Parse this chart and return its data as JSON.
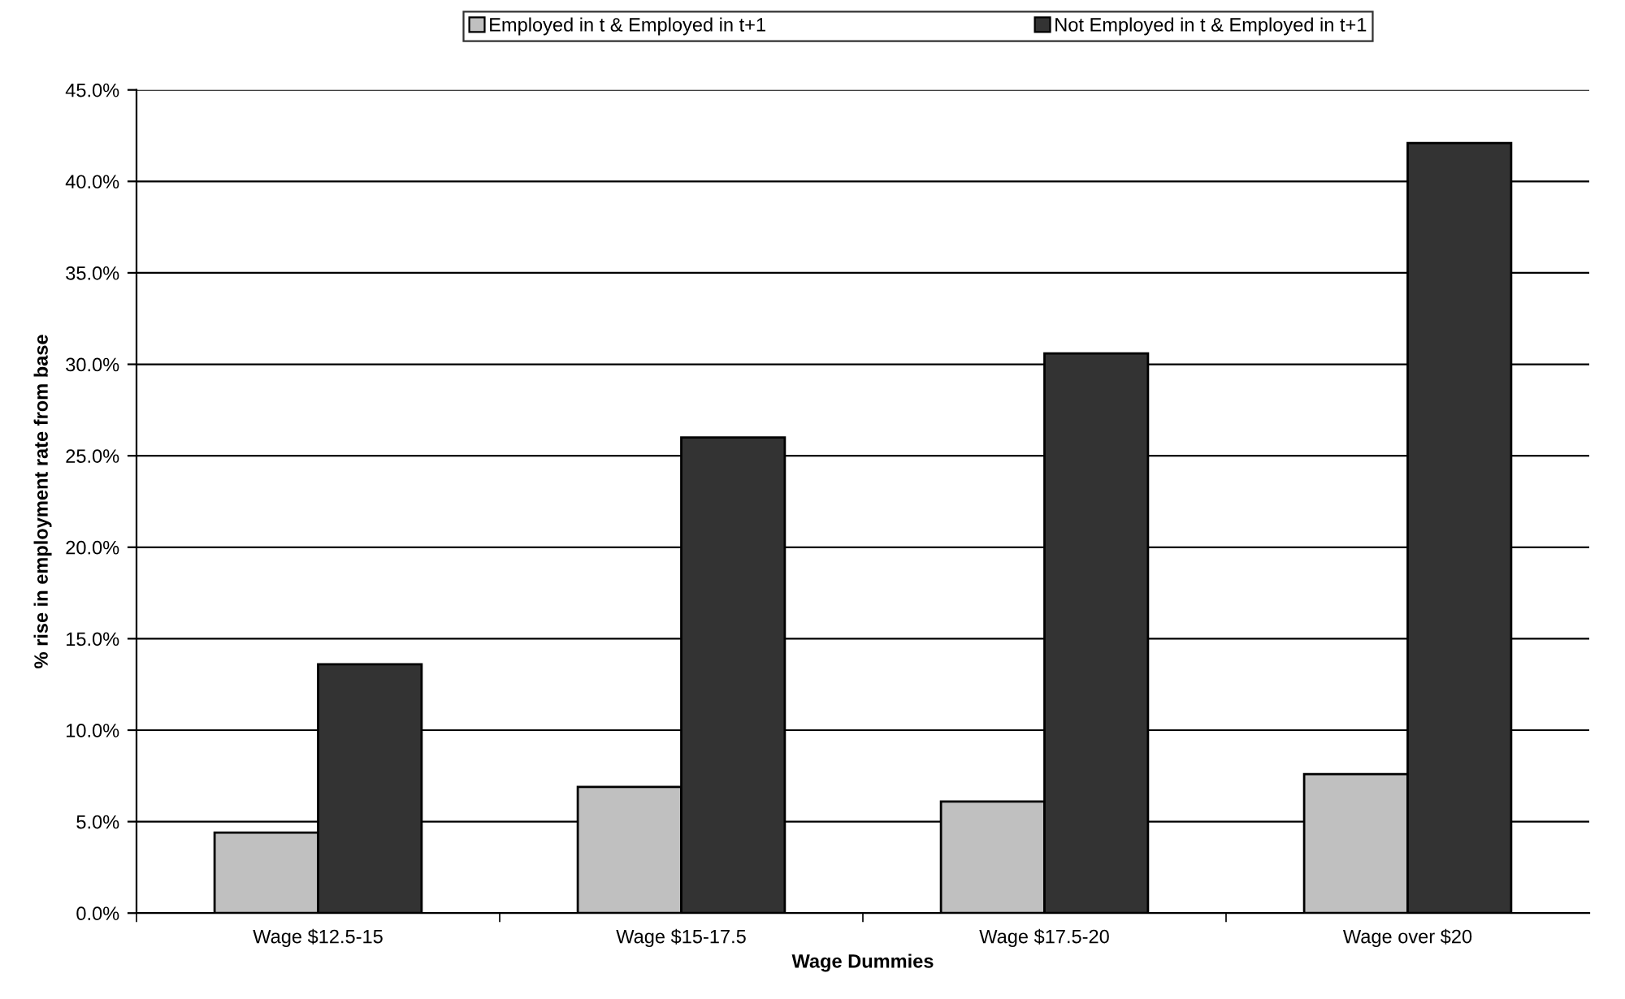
{
  "chart_data": {
    "type": "bar",
    "xlabel": "Wage Dummies",
    "ylabel": "% rise in employment rate from base",
    "categories": [
      "Wage $12.5-15",
      "Wage $15-17.5",
      "Wage $17.5-20",
      "Wage over $20"
    ],
    "series": [
      {
        "name": "Employed in t & Employed in t+1",
        "color": "#c0c0c0",
        "values": [
          4.4,
          6.9,
          6.1,
          7.6
        ]
      },
      {
        "name": "Not Employed in t & Employed in t+1",
        "color": "#333333",
        "values": [
          13.6,
          26.0,
          30.6,
          42.1
        ]
      }
    ],
    "ylim": [
      0,
      45
    ],
    "yticks": [
      {
        "value": 0,
        "label": "0.0%"
      },
      {
        "value": 5,
        "label": "5.0%"
      },
      {
        "value": 10,
        "label": "10.0%"
      },
      {
        "value": 15,
        "label": "15.0%"
      },
      {
        "value": 20,
        "label": "20.0%"
      },
      {
        "value": 25,
        "label": "25.0%"
      },
      {
        "value": 30,
        "label": "30.0%"
      },
      {
        "value": 35,
        "label": "35.0%"
      },
      {
        "value": 40,
        "label": "40.0%"
      },
      {
        "value": 45,
        "label": "45.0%"
      }
    ],
    "grid": "y",
    "legend": "top"
  }
}
